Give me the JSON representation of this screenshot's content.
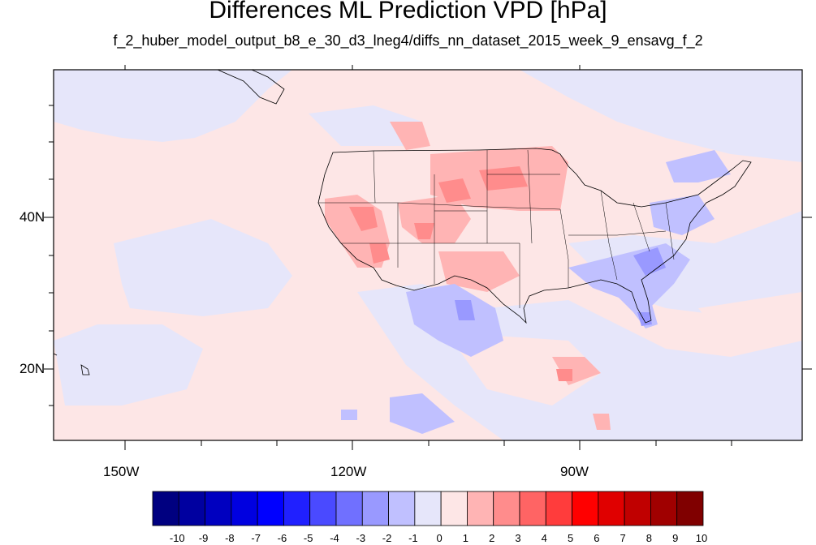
{
  "title": "Differences ML Prediction VPD [hPa]",
  "subtitle": "f_2_huber_model_output_b8_e_30_d3_lneg4/diffs_nn_dataset_2015_week_9_ensavg_f_2",
  "map": {
    "projection": "cylindrical equidistant",
    "lon_range": [
      -160,
      -60
    ],
    "lat_range": [
      10,
      60
    ],
    "x_ticks": [
      "150W",
      "120W",
      "90W"
    ],
    "y_ticks": [
      "40N",
      "20N"
    ],
    "background_color": "#fde6e6"
  },
  "colorbar": {
    "labels": [
      "-10",
      "-9",
      "-8",
      "-7",
      "-6",
      "-5",
      "-4",
      "-3",
      "-2",
      "-1",
      "0",
      "1",
      "2",
      "3",
      "4",
      "5",
      "6",
      "7",
      "8",
      "9",
      "10"
    ],
    "colors": [
      "#000080",
      "#0000a0",
      "#0000c0",
      "#0000e0",
      "#0000ff",
      "#2020ff",
      "#4a4aff",
      "#7070ff",
      "#9999ff",
      "#c0c0ff",
      "#e6e6fa",
      "#fde6e6",
      "#ffb4b4",
      "#ff8c8c",
      "#ff6464",
      "#ff3c3c",
      "#ff0000",
      "#e00000",
      "#c00000",
      "#a00000",
      "#800000"
    ]
  }
}
